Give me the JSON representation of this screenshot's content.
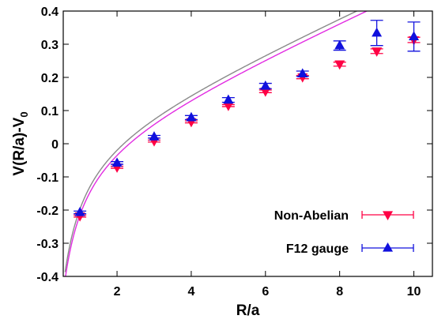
{
  "chart_data": {
    "type": "scatter",
    "xlabel": "R/a",
    "ylabel": {
      "main": "V(R/a)-V",
      "sub": "0"
    },
    "xlim": [
      0.55,
      10.5
    ],
    "ylim": [
      -0.4,
      0.4
    ],
    "xticks": [
      2,
      4,
      6,
      8,
      10
    ],
    "xtick_labels": [
      "2",
      "4",
      "6",
      "8",
      "10"
    ],
    "yticks": [
      -0.4,
      -0.3,
      -0.2,
      -0.1,
      0,
      0.1,
      0.2,
      0.3,
      0.4
    ],
    "ytick_labels": [
      "-0.4",
      "-0.3",
      "-0.2",
      "-0.1",
      "0",
      "0.1",
      "0.2",
      "0.3",
      "0.4"
    ],
    "grid": false,
    "legend_position": "bottom-right",
    "series": [
      {
        "name": "Non-Abelian",
        "color": "#ff0044",
        "fit_color": "#e22be2",
        "marker": "triangle-down",
        "x": [
          1,
          2,
          3,
          4,
          5,
          6,
          7,
          8,
          9,
          10
        ],
        "y": [
          -0.218,
          -0.071,
          0.008,
          0.066,
          0.115,
          0.158,
          0.201,
          0.24,
          0.279,
          0.313
        ],
        "yerr": [
          0.003,
          0.003,
          0.003,
          0.003,
          0.003,
          0.004,
          0.005,
          0.006,
          0.007,
          0.008
        ],
        "fit": {
          "sigma": 0.0498,
          "alpha": 0.26,
          "const": -0.005
        }
      },
      {
        "name": "F12 gauge",
        "color": "#1010dd",
        "fit_color": "#8a8a8a",
        "marker": "triangle-up",
        "x": [
          1,
          2,
          3,
          4,
          5,
          6,
          7,
          8,
          9,
          10
        ],
        "y": [
          -0.207,
          -0.058,
          0.021,
          0.079,
          0.132,
          0.174,
          0.211,
          0.296,
          0.334,
          0.323
        ],
        "yerr": [
          0.004,
          0.004,
          0.004,
          0.006,
          0.007,
          0.008,
          0.008,
          0.014,
          0.038,
          0.044
        ],
        "fit": {
          "sigma": 0.0499,
          "alpha": 0.255,
          "const": 0.008
        }
      }
    ]
  }
}
